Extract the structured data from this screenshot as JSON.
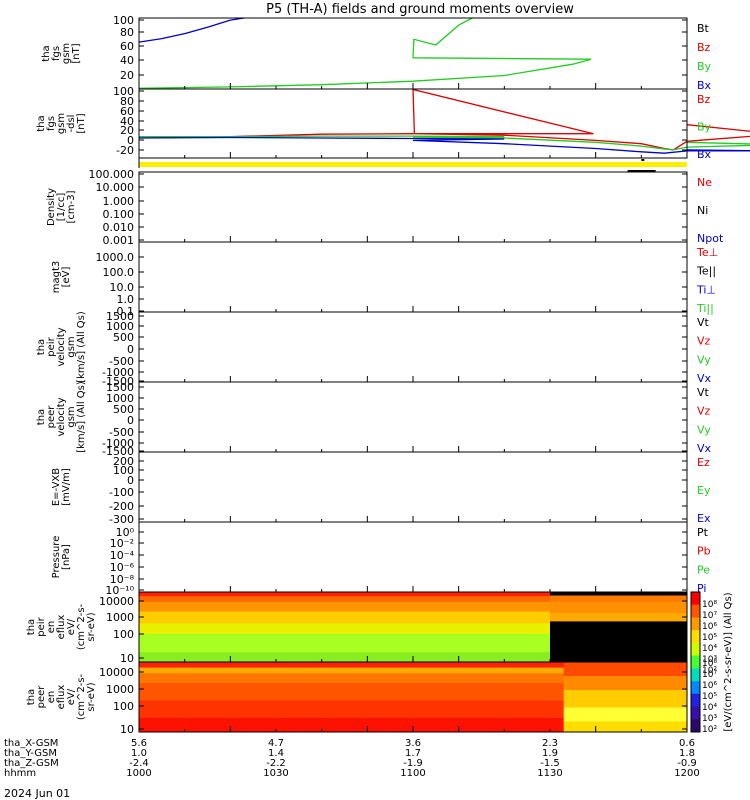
{
  "title": "P5 (TH-A) fields and ground moments overview",
  "date_label": "2024 Jun 01",
  "colors": {
    "black": "#000000",
    "red": "#dd0000",
    "green": "#22cc22",
    "blue": "#0000cc",
    "yellow": "#ffee00"
  },
  "chart_data": [
    {
      "id": "fgs-gsm",
      "type": "line",
      "ylabel_lines": [
        "tha",
        "fgs",
        "gsm",
        "[nT]"
      ],
      "ylim": [
        0,
        100
      ],
      "yticks": [
        "100",
        "80",
        "60",
        "40",
        "20"
      ],
      "legend": [
        {
          "label": "Bt",
          "color": "#000000"
        },
        {
          "label": "Bz",
          "color": "#dd0000"
        },
        {
          "label": "By",
          "color": "#22cc22"
        },
        {
          "label": "Bx",
          "color": "#0000cc"
        }
      ],
      "series": [
        {
          "name": "Bx",
          "color": "#0000cc",
          "t": [
            1000,
            1005,
            1010,
            1015,
            1020,
            1023
          ],
          "values": [
            66,
            71,
            78,
            87,
            97,
            100
          ]
        },
        {
          "name": "By",
          "color": "#22cc22",
          "t": [
            1000,
            1020,
            1040,
            1060,
            1080,
            1095,
            1099,
            1100,
            1100.2,
            1105,
            1110,
            1113
          ],
          "values": [
            1,
            3,
            6,
            11,
            19,
            35,
            42,
            44,
            70,
            62,
            90,
            100
          ]
        }
      ]
    },
    {
      "id": "fgs-dsl",
      "type": "line",
      "ylabel_lines": [
        "tha",
        "fgs",
        "gsm",
        "-dsl",
        "[nT]"
      ],
      "ylim": [
        -45,
        100
      ],
      "yticks": [
        "100",
        "80",
        "60",
        "40",
        "20",
        "0",
        "-20"
      ],
      "legend": [
        {
          "label": "Bz",
          "color": "#dd0000"
        },
        {
          "label": "By",
          "color": "#22cc22"
        },
        {
          "label": "Bx",
          "color": "#0000cc"
        }
      ],
      "series": [
        {
          "name": "Bz",
          "color": "#dd0000",
          "t": [
            1000,
            1020,
            1040,
            1060,
            1080,
            1095,
            1099.5,
            1100,
            1100.3,
            1101,
            1120,
            1140,
            1150,
            1155,
            1157,
            1160,
            1180,
            1200
          ],
          "values": [
            -3,
            0,
            5,
            6,
            6,
            6,
            6,
            99,
            6,
            6,
            3,
            -8,
            -15,
            -25,
            -28,
            -10,
            5,
            25
          ]
        },
        {
          "name": "By",
          "color": "#22cc22",
          "t": [
            1000,
            1020,
            1040,
            1060,
            1080,
            1100,
            1120,
            1140,
            1150,
            1155,
            1157,
            1160,
            1180,
            1200
          ],
          "values": [
            0,
            0,
            1,
            1,
            0,
            -1,
            -3,
            -12,
            -20,
            -26,
            -28,
            -22,
            -17,
            -12
          ]
        },
        {
          "name": "Bx",
          "color": "#0000cc",
          "t": [
            1000,
            1020,
            1040,
            1060,
            1080,
            1100,
            1120,
            1140,
            1150,
            1155,
            1160,
            1180,
            1200
          ],
          "values": [
            -3,
            -2,
            -3,
            -4,
            -5,
            -8,
            -15,
            -25,
            -32,
            -35,
            -30,
            -30,
            -28
          ]
        }
      ]
    },
    {
      "id": "density",
      "type": "line",
      "ylabel_lines": [
        "Density",
        "[1/cc]",
        "[cm-3]"
      ],
      "scale": "log",
      "yticks": [
        "100.000",
        "10.000",
        "1.000",
        "0.100",
        "0.010",
        "0.001"
      ],
      "legend": [
        {
          "label": "Ne",
          "color": "#dd0000"
        },
        {
          "label": "Ni",
          "color": "#000000"
        },
        {
          "label": "Npot",
          "color": "#0000cc"
        }
      ]
    },
    {
      "id": "temperature",
      "type": "line",
      "ylabel_lines": [
        "magt3",
        "[eV]"
      ],
      "scale": "log",
      "yticks": [
        "1000.0",
        "100.0",
        "10.0",
        "1.0",
        "0.1"
      ],
      "legend": [
        {
          "label": "Te⊥",
          "color": "#dd0000"
        },
        {
          "label": "Te||",
          "color": "#000000"
        },
        {
          "label": "Ti⊥",
          "color": "#0000cc"
        },
        {
          "label": "Ti||",
          "color": "#22cc22"
        }
      ]
    },
    {
      "id": "peir-velocity",
      "type": "line",
      "ylabel_lines": [
        "tha",
        "peir",
        "velocity",
        "gsm",
        "[km/s] (All Qs)"
      ],
      "ylim": [
        -1500,
        1500
      ],
      "yticks": [
        "1500",
        "1000",
        "500",
        "0",
        "-500",
        "-1000",
        "-1500"
      ],
      "legend": [
        {
          "label": "Vt",
          "color": "#000000"
        },
        {
          "label": "Vz",
          "color": "#dd0000"
        },
        {
          "label": "Vy",
          "color": "#22cc22"
        },
        {
          "label": "Vx",
          "color": "#0000cc"
        }
      ]
    },
    {
      "id": "peer-velocity",
      "type": "line",
      "ylabel_lines": [
        "tha",
        "peer",
        "velocity",
        "gsm",
        "[km/s] (All Qs)"
      ],
      "ylim": [
        -1500,
        1500
      ],
      "yticks": [
        "1500",
        "1000",
        "500",
        "0",
        "-500",
        "-1000",
        "-1500"
      ],
      "legend": [
        {
          "label": "Vt",
          "color": "#000000"
        },
        {
          "label": "Vz",
          "color": "#dd0000"
        },
        {
          "label": "Vy",
          "color": "#22cc22"
        },
        {
          "label": "Vx",
          "color": "#0000cc"
        }
      ]
    },
    {
      "id": "e-field",
      "type": "line",
      "ylabel_lines": [
        "E=-VXB",
        "[mV/m]"
      ],
      "ylim": [
        -300,
        200
      ],
      "yticks": [
        "200",
        "100",
        "0",
        "-100",
        "-200",
        "-300"
      ],
      "legend": [
        {
          "label": "Ez",
          "color": "#dd0000"
        },
        {
          "label": "Ey",
          "color": "#22cc22"
        },
        {
          "label": "Ex",
          "color": "#0000cc"
        }
      ]
    },
    {
      "id": "pressure",
      "type": "line",
      "ylabel_lines": [
        "Pressure",
        "[nPa]"
      ],
      "scale": "log",
      "yticks": [
        "10⁰",
        "10⁻²",
        "10⁻⁴",
        "10⁻⁶",
        "10⁻⁸",
        "10⁻¹⁰"
      ],
      "legend": [
        {
          "label": "Pt",
          "color": "#000000"
        },
        {
          "label": "Pb",
          "color": "#dd0000"
        },
        {
          "label": "Pe",
          "color": "#22cc22"
        },
        {
          "label": "Pi",
          "color": "#0000cc"
        }
      ]
    },
    {
      "id": "peir-eflux",
      "type": "heatmap",
      "ylabel_lines": [
        "tha",
        "peir",
        "en",
        "eflux",
        "eV/",
        "(cm^2-s-",
        "sr-eV)"
      ],
      "scale": "log",
      "yticks": [
        "10000",
        "1000",
        "100",
        "10"
      ]
    },
    {
      "id": "peer-eflux",
      "type": "heatmap",
      "ylabel_lines": [
        "tha",
        "peer",
        "en",
        "eflux",
        "eV/",
        "(cm^2-s-",
        "sr-eV)"
      ],
      "scale": "log",
      "yticks": [
        "10000",
        "1000",
        "100",
        "10"
      ]
    }
  ],
  "colorbar": {
    "label": "[eV/(cm^2-s-sr-eV)] (All Qs)",
    "ticks_top": [
      "10⁸",
      "10⁷",
      "10⁶",
      "10⁵",
      "10⁴",
      "10³",
      "10²"
    ],
    "ticks_bottom": [
      "10⁸",
      "10⁷",
      "10⁶",
      "10⁵",
      "10⁴",
      "10³",
      "10²"
    ]
  },
  "ephemeris": {
    "row_labels": [
      "tha_X-GSM",
      "tha_Y-GSM",
      "tha_Z-GSM",
      "hhmm"
    ],
    "columns": [
      {
        "t": 1000,
        "values": [
          "5.6",
          "1.0",
          "-2.4",
          "1000"
        ]
      },
      {
        "t": 1030,
        "values": [
          "4.7",
          "1.4",
          "-2.2",
          "1030"
        ]
      },
      {
        "t": 1100,
        "values": [
          "3.6",
          "1.7",
          "-1.9",
          "1100"
        ]
      },
      {
        "t": 1130,
        "values": [
          "2.3",
          "1.9",
          "-1.5",
          "1130"
        ]
      },
      {
        "t": 1200,
        "values": [
          "0.6",
          "1.8",
          "-0.9",
          "1200"
        ]
      }
    ]
  }
}
